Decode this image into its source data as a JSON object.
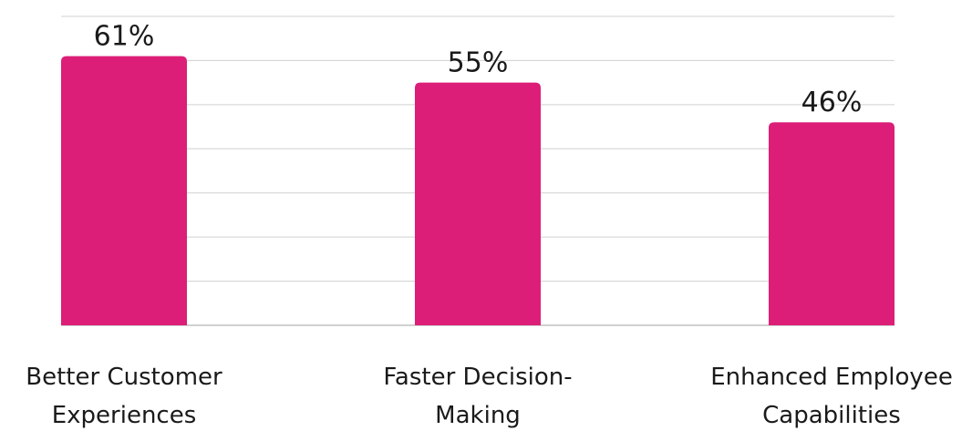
{
  "chart_data": {
    "type": "bar",
    "categories": [
      [
        "Better Customer",
        "Experiences"
      ],
      [
        "Faster Decision-",
        "Making"
      ],
      [
        "Enhanced Employee",
        "Capabilities"
      ]
    ],
    "values": [
      61,
      55,
      46
    ],
    "value_labels": [
      "61%",
      "55%",
      "46%"
    ],
    "ylim": [
      0,
      70
    ],
    "grid": true,
    "legend": "none",
    "bar_color": "#dc1e78",
    "title": "",
    "xlabel": "",
    "ylabel": ""
  }
}
